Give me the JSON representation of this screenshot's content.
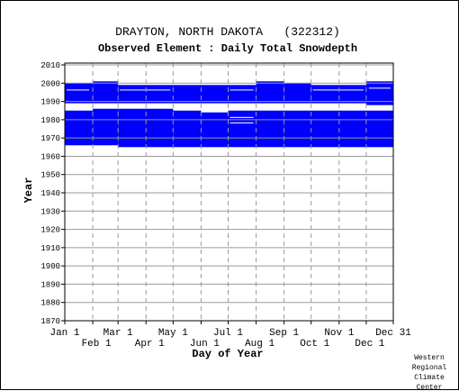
{
  "chart_data": {
    "type": "bar",
    "title": "DRAYTON, NORTH DAKOTA   (322312)",
    "subtitle": "Observed Element : Daily Total Snowdepth",
    "xlabel": "Day of Year",
    "ylabel": "Year",
    "xlim": [
      1,
      365
    ],
    "ylim": [
      1870,
      2011
    ],
    "grid": true,
    "x_ticks_top_row": [
      {
        "label": "Jan 1",
        "day": 1
      },
      {
        "label": "Mar 1",
        "day": 60
      },
      {
        "label": "May 1",
        "day": 121
      },
      {
        "label": "Jul 1",
        "day": 182
      },
      {
        "label": "Sep 1",
        "day": 244
      },
      {
        "label": "Nov 1",
        "day": 305
      },
      {
        "label": "Dec 31",
        "day": 365
      }
    ],
    "x_ticks_bottom_row": [
      {
        "label": "Feb 1",
        "day": 32
      },
      {
        "label": "Apr 1",
        "day": 91
      },
      {
        "label": "Jun 1",
        "day": 152
      },
      {
        "label": "Aug 1",
        "day": 213
      },
      {
        "label": "Oct 1",
        "day": 274
      },
      {
        "label": "Dec 1",
        "day": 335
      }
    ],
    "y_ticks": [
      1870,
      1880,
      1890,
      1900,
      1910,
      1920,
      1930,
      1940,
      1950,
      1960,
      1970,
      1980,
      1990,
      2000,
      2010
    ],
    "series_color": "#0000ff",
    "coverage": [
      {
        "day_start": 1,
        "day_end": 32,
        "year_start": 1966,
        "year_end": 1984
      },
      {
        "day_start": 32,
        "day_end": 60,
        "year_start": 1966,
        "year_end": 1985
      },
      {
        "day_start": 60,
        "day_end": 121,
        "year_start": 1965,
        "year_end": 1985
      },
      {
        "day_start": 121,
        "day_end": 152,
        "year_start": 1965,
        "year_end": 1984
      },
      {
        "day_start": 152,
        "day_end": 182,
        "year_start": 1965,
        "year_end": 1983
      },
      {
        "day_start": 182,
        "day_end": 244,
        "year_start": 1965,
        "year_end": 1984
      },
      {
        "day_start": 244,
        "day_end": 365,
        "year_start": 1965,
        "year_end": 1984
      },
      {
        "day_start": 1,
        "day_end": 32,
        "year_start": 1989,
        "year_end": 1999
      },
      {
        "day_start": 32,
        "day_end": 60,
        "year_start": 1989,
        "year_end": 2000
      },
      {
        "day_start": 60,
        "day_end": 213,
        "year_start": 1989,
        "year_end": 1998
      },
      {
        "day_start": 213,
        "day_end": 244,
        "year_start": 1989,
        "year_end": 2000
      },
      {
        "day_start": 244,
        "day_end": 274,
        "year_start": 1989,
        "year_end": 1999
      },
      {
        "day_start": 274,
        "day_end": 335,
        "year_start": 1989,
        "year_end": 1998
      },
      {
        "day_start": 335,
        "day_end": 365,
        "year_start": 1988,
        "year_end": 2000
      }
    ],
    "gaps": [
      {
        "day_start": 3,
        "day_end": 28,
        "year": 1996
      },
      {
        "day_start": 62,
        "day_end": 118,
        "year": 1996
      },
      {
        "day_start": 184,
        "day_end": 210,
        "year": 1996
      },
      {
        "day_start": 276,
        "day_end": 332,
        "year": 1996
      },
      {
        "day_start": 184,
        "day_end": 210,
        "year": 1981
      },
      {
        "day_start": 184,
        "day_end": 210,
        "year": 1978
      },
      {
        "day_start": 338,
        "day_end": 362,
        "year": 1997
      }
    ]
  },
  "credit": {
    "line1": "Western",
    "line2": "Regional",
    "line3": "Climate",
    "line4": "Center"
  }
}
